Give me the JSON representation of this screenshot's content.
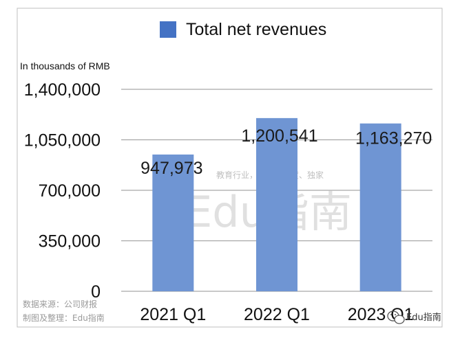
{
  "chart_data": {
    "type": "bar",
    "categories": [
      "2021 Q1",
      "2022 Q1",
      "2023 Q1"
    ],
    "series": [
      {
        "name": "Total net revenues",
        "values": [
          947973,
          1200541,
          1163270
        ],
        "color": "#6f95d3"
      }
    ],
    "data_labels": [
      "947,973",
      "1,200,541",
      "1,163,270"
    ],
    "y_tick_labels": [
      "0",
      "350,000",
      "700,000",
      "1,050,000",
      "1,400,000"
    ],
    "y_ticks": [
      0,
      350000,
      700000,
      1050000,
      1400000
    ],
    "ylim": [
      0,
      1400000
    ],
    "unit_label": "In thousands of RMB",
    "legend_placement": "top",
    "legend_color": "#4472c4",
    "grid": true,
    "gridline_color": "#a6a6a6"
  },
  "source_note": {
    "line1": "数据来源：公司财报",
    "line2": "制图及整理：Edu指南"
  },
  "watermark": {
    "title": "Edu指南",
    "tagline": "教育行业，前沿、深度、独家"
  },
  "wechat_mark": {
    "label": "Edu指南",
    "icon": "wechat-icon"
  }
}
